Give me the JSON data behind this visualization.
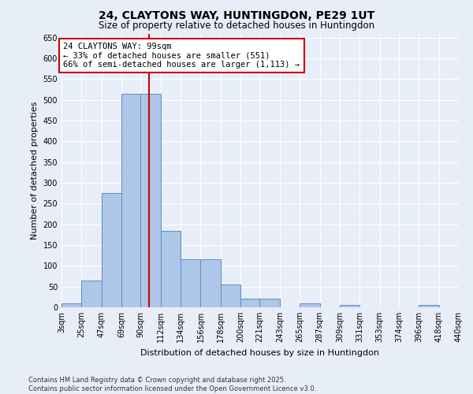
{
  "title_line1": "24, CLAYTONS WAY, HUNTINGDON, PE29 1UT",
  "title_line2": "Size of property relative to detached houses in Huntingdon",
  "xlabel": "Distribution of detached houses by size in Huntingdon",
  "ylabel": "Number of detached properties",
  "bar_color": "#aec6e8",
  "bar_edge_color": "#5a8fc2",
  "background_color": "#e8eef8",
  "grid_color": "#ffffff",
  "bins": [
    3,
    25,
    47,
    69,
    90,
    112,
    134,
    156,
    178,
    200,
    221,
    243,
    265,
    287,
    309,
    331,
    353,
    374,
    396,
    418,
    440
  ],
  "bin_labels": [
    "3sqm",
    "25sqm",
    "47sqm",
    "69sqm",
    "90sqm",
    "112sqm",
    "134sqm",
    "156sqm",
    "178sqm",
    "200sqm",
    "221sqm",
    "243sqm",
    "265sqm",
    "287sqm",
    "309sqm",
    "331sqm",
    "353sqm",
    "374sqm",
    "396sqm",
    "418sqm",
    "440sqm"
  ],
  "values": [
    10,
    65,
    275,
    515,
    515,
    185,
    115,
    115,
    55,
    20,
    20,
    0,
    10,
    0,
    5,
    0,
    0,
    0,
    5,
    0
  ],
  "property_size": 99,
  "vline_color": "#cc0000",
  "annotation_text": "24 CLAYTONS WAY: 99sqm\n← 33% of detached houses are smaller (551)\n66% of semi-detached houses are larger (1,113) →",
  "annotation_box_color": "#ffffff",
  "annotation_box_edge_color": "#cc0000",
  "ylim": [
    0,
    660
  ],
  "yticks": [
    0,
    50,
    100,
    150,
    200,
    250,
    300,
    350,
    400,
    450,
    500,
    550,
    600,
    650
  ],
  "footnote": "Contains HM Land Registry data © Crown copyright and database right 2025.\nContains public sector information licensed under the Open Government Licence v3.0.",
  "title_fontsize": 10,
  "subtitle_fontsize": 8.5,
  "axis_fontsize": 8,
  "tick_fontsize": 7,
  "annot_fontsize": 7.5
}
